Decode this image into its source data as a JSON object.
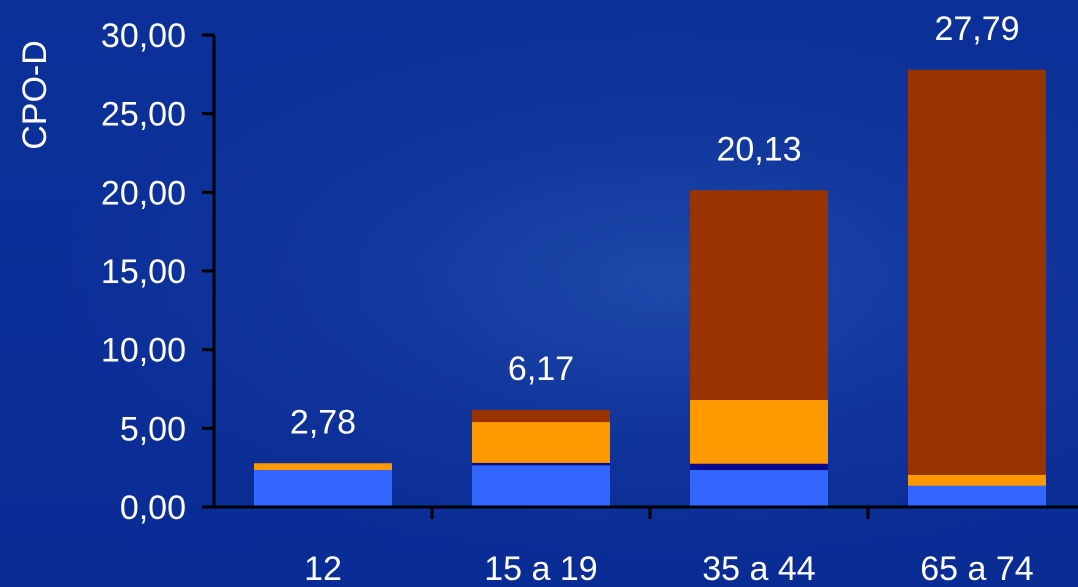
{
  "chart_data": {
    "type": "bar",
    "stacked": true,
    "title": "",
    "xlabel": "",
    "ylabel": "CPO-D",
    "ylim": [
      0,
      30
    ],
    "yticks": [
      "0,00",
      "5,00",
      "10,00",
      "15,00",
      "20,00",
      "25,00",
      "30,00"
    ],
    "ytick_values": [
      0,
      5,
      10,
      15,
      20,
      25,
      30
    ],
    "categories": [
      "12",
      "15 a 19",
      "35 a 44",
      "65 a 74"
    ],
    "totals": [
      2.78,
      6.17,
      20.13,
      27.79
    ],
    "total_labels": [
      "2,78",
      "6,17",
      "20,13",
      "27,79"
    ],
    "series": [
      {
        "color": "#3366ff",
        "values": [
          2.35,
          2.65,
          2.35,
          1.35
        ]
      },
      {
        "color": "#0a0a8c",
        "values": [
          0.0,
          0.15,
          0.4,
          0.0
        ]
      },
      {
        "color": "#ff9900",
        "values": [
          0.43,
          2.6,
          4.05,
          0.7
        ]
      },
      {
        "color": "#993300",
        "values": [
          0.0,
          0.77,
          13.33,
          25.74
        ]
      }
    ],
    "grid": false,
    "legend": "none"
  }
}
